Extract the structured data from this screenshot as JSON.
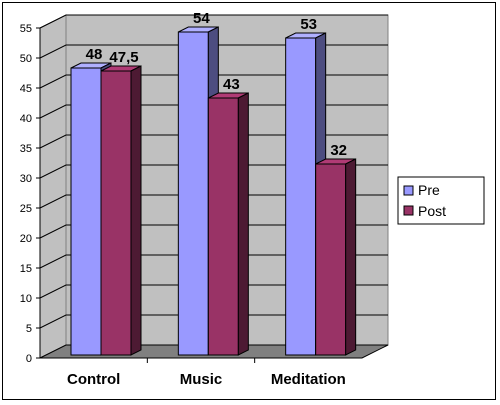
{
  "chart_data": {
    "type": "bar",
    "categories": [
      "Control",
      "Music",
      "Meditation"
    ],
    "series": [
      {
        "name": "Pre",
        "values": [
          48,
          54,
          53
        ],
        "labels": [
          "48",
          "54",
          "53"
        ],
        "color": "#9999ff"
      },
      {
        "name": "Post",
        "values": [
          47.5,
          43,
          32
        ],
        "labels": [
          "47,5",
          "43",
          "32"
        ],
        "color": "#993366"
      }
    ],
    "title": "",
    "xlabel": "",
    "ylabel": "",
    "ylim": [
      0,
      55
    ],
    "yticks": [
      "0",
      "5",
      "10",
      "15",
      "20",
      "25",
      "30",
      "35",
      "40",
      "45",
      "50",
      "55"
    ],
    "grid": true,
    "legend_position": "right",
    "three_d": true,
    "colors": {
      "wall": "#c0c0c0",
      "floor": "#808080",
      "grid": "#000000"
    }
  }
}
